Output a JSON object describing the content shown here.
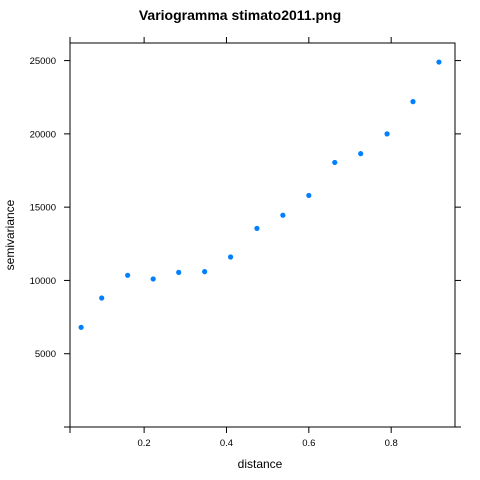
{
  "chart_data": {
    "type": "scatter",
    "title": "Variogramma stimato2011.png",
    "xlabel": "distance",
    "ylabel": "semivariance",
    "xlim": [
      0.02,
      0.955
    ],
    "ylim": [
      0,
      26200
    ],
    "x_ticks": [
      0.2,
      0.4,
      0.6,
      0.8
    ],
    "x_tick_labels": [
      "0.2",
      "0.4",
      "0.6",
      "0.8"
    ],
    "y_ticks": [
      5000,
      10000,
      15000,
      20000,
      25000
    ],
    "y_tick_labels": [
      "5000",
      "10000",
      "15000",
      "20000",
      "25000"
    ],
    "point_color": "#0080ff",
    "grid": false,
    "series": [
      {
        "x": [
          0.047,
          0.097,
          0.16,
          0.222,
          0.284,
          0.347,
          0.41,
          0.474,
          0.537,
          0.6,
          0.663,
          0.726,
          0.79,
          0.853,
          0.916
        ],
        "y": [
          6800,
          8800,
          10350,
          10100,
          10550,
          10600,
          11600,
          13550,
          14450,
          15800,
          18050,
          18650,
          20000,
          22200,
          24900
        ]
      }
    ]
  }
}
